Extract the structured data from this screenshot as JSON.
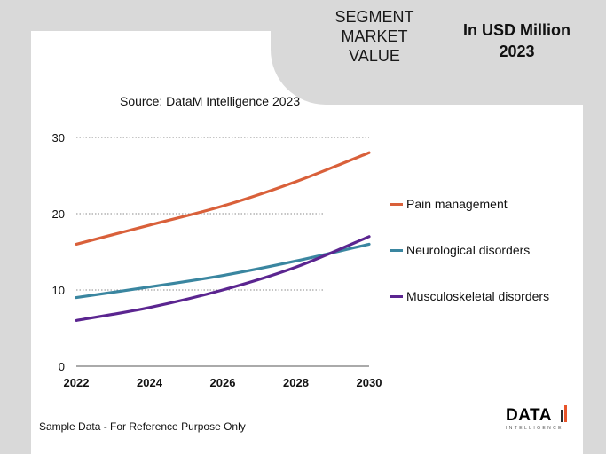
{
  "header": {
    "title_lines": [
      "SEGMENT",
      "MARKET",
      "VALUE"
    ],
    "unit_lines": [
      "In USD Million",
      "2023"
    ]
  },
  "source_text": "Source: DataM Intelligence  2023",
  "footer_note": "Sample Data - For Reference Purpose Only",
  "logo": {
    "main": "DATA",
    "sub": "INTELLIGENCE"
  },
  "colors": {
    "pain": "#d9603a",
    "neuro": "#3a86a0",
    "musculo": "#5b2590",
    "logo_accent": "#e8542a"
  },
  "chart_data": {
    "type": "line",
    "title": "",
    "xlabel": "",
    "ylabel": "",
    "x": [
      2022,
      2024,
      2026,
      2028,
      2030
    ],
    "x_tick_labels": [
      "2022",
      "2024",
      "2026",
      "2028",
      "2030"
    ],
    "ylim": [
      0,
      30
    ],
    "y_ticks": [
      0,
      10,
      20,
      30
    ],
    "y_tick_labels": [
      "0",
      "10",
      "20",
      "30"
    ],
    "grid": true,
    "legend_position": "right",
    "series": [
      {
        "name": "Pain management",
        "color_key": "pain",
        "values": [
          16,
          18.5,
          21,
          24.2,
          28
        ]
      },
      {
        "name": "Neurological disorders",
        "color_key": "neuro",
        "values": [
          9,
          10.4,
          11.9,
          13.8,
          16
        ]
      },
      {
        "name": "Musculoskeletal disorders",
        "color_key": "musculo",
        "values": [
          6,
          7.7,
          10,
          13,
          17
        ]
      }
    ]
  }
}
